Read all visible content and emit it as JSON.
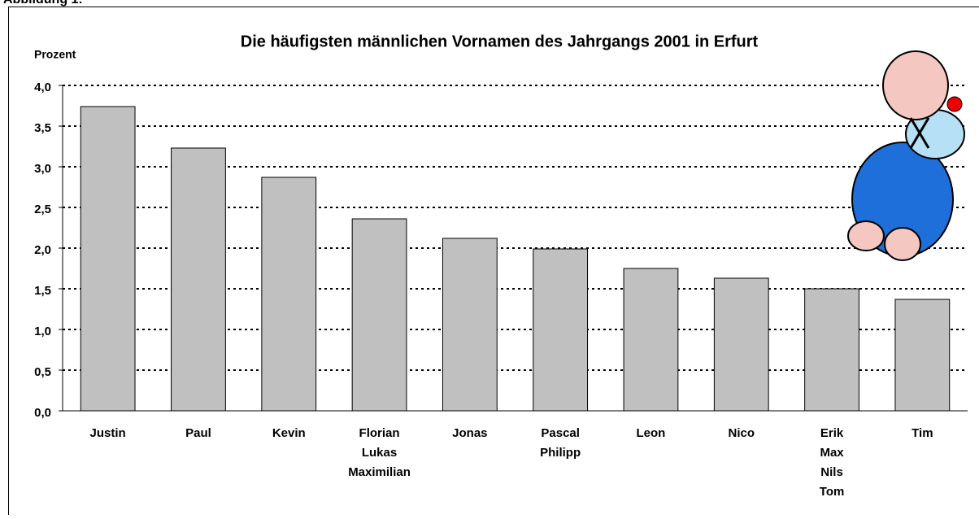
{
  "header": "Abbildung 1:",
  "chart_data": {
    "type": "bar",
    "title": "Die häufigsten männlichen Vornamen des Jahrgangs 2001 in Erfurt",
    "y_label": "Prozent",
    "categories": [
      [
        "Justin"
      ],
      [
        "Paul"
      ],
      [
        "Kevin"
      ],
      [
        "Florian",
        "Lukas",
        "Maximilian"
      ],
      [
        "Jonas"
      ],
      [
        "Pascal",
        "Philipp"
      ],
      [
        "Leon"
      ],
      [
        "Nico"
      ],
      [
        "Erik",
        "Max",
        "Nils",
        "Tom"
      ],
      [
        "Tim"
      ]
    ],
    "values": [
      3.74,
      3.23,
      2.87,
      2.36,
      2.12,
      1.99,
      1.75,
      1.63,
      1.5,
      1.37
    ],
    "color": "#c0c0c0",
    "ylim": [
      0,
      4
    ],
    "yticks": [
      {
        "value": 0,
        "label": "0,0"
      },
      {
        "value": 0.5,
        "label": "0,5"
      },
      {
        "value": 1,
        "label": "1,0"
      },
      {
        "value": 1.5,
        "label": "1,5"
      },
      {
        "value": 2,
        "label": "2,0"
      },
      {
        "value": 2.5,
        "label": "2,5"
      },
      {
        "value": 3,
        "label": "3,0"
      },
      {
        "value": 3.5,
        "label": "3,5"
      },
      {
        "value": 4,
        "label": "4,0"
      }
    ],
    "grid": true
  }
}
